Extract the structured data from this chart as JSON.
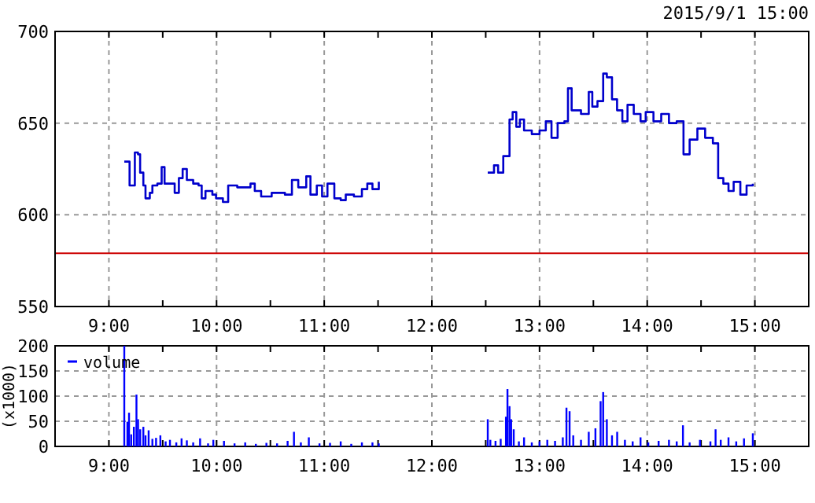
{
  "chart_data": [
    {
      "type": "step",
      "subtitle": "2015/9/1 15:00",
      "xlim": [
        8.5,
        15.5
      ],
      "xticks": [
        {
          "value": 9,
          "label": "9:00"
        },
        {
          "value": 9.5,
          "label": null
        },
        {
          "value": 10,
          "label": "10:00"
        },
        {
          "value": 10.5,
          "label": null
        },
        {
          "value": 11,
          "label": "11:00"
        },
        {
          "value": 11.5,
          "label": null
        },
        {
          "value": 12,
          "label": "12:00"
        },
        {
          "value": 12.5,
          "label": null
        },
        {
          "value": 13,
          "label": "13:00"
        },
        {
          "value": 13.5,
          "label": null
        },
        {
          "value": 14,
          "label": "14:00"
        },
        {
          "value": 14.5,
          "label": null
        },
        {
          "value": 15,
          "label": "15:00"
        }
      ],
      "ylim": [
        550,
        700
      ],
      "yticks": [
        550,
        600,
        650,
        700
      ],
      "grid": true,
      "ref_lines": [
        {
          "axis": "y",
          "value": 579,
          "color": "#cc0000"
        }
      ],
      "series": [
        {
          "color": "#0000cc",
          "x": [
            9.143,
            9.182,
            9.192,
            9.22,
            9.241,
            9.27,
            9.29,
            9.32,
            9.34,
            9.38,
            9.404,
            9.45,
            9.49,
            9.517,
            9.576,
            9.611,
            9.65,
            9.685,
            9.724,
            9.783,
            9.833,
            9.862,
            9.897,
            9.961,
            9.995,
            10.059,
            10.108,
            10.192,
            10.315,
            10.355,
            10.414,
            10.512,
            10.635,
            10.7,
            10.759,
            10.833,
            10.872,
            10.931,
            10.98,
            11.03,
            11.094,
            11.153,
            11.2,
            11.276,
            11.35,
            11.4,
            11.448,
            11.507,
            12,
            12.519,
            12.577,
            12.615,
            12.663,
            12.702,
            12.721,
            12.75,
            12.784,
            12.817,
            12.856,
            12.928,
            13.0,
            13.058,
            13.111,
            13.168,
            13.231,
            13.264,
            13.298,
            13.385,
            13.457,
            13.49,
            13.538,
            13.591,
            13.625,
            13.673,
            13.72,
            13.769,
            13.817,
            13.875,
            13.938,
            13.986,
            14.058,
            14.13,
            14.202,
            14.274,
            14.337,
            14.394,
            14.466,
            14.538,
            14.61,
            14.659,
            14.707,
            14.755,
            14.803,
            14.865,
            14.923,
            14.981
          ],
          "values": [
            629,
            629,
            616,
            616,
            634,
            633,
            623,
            616,
            609,
            612,
            616,
            617,
            626,
            617,
            617,
            612,
            620,
            625,
            619,
            617,
            616,
            609,
            613,
            611,
            609,
            607,
            616,
            615,
            617,
            613,
            610,
            612,
            611,
            619,
            615,
            621,
            611,
            616,
            610,
            617,
            609,
            608,
            611,
            610,
            614,
            617,
            614,
            618,
            null,
            623,
            627,
            623,
            632,
            632,
            652,
            656,
            648,
            652,
            646,
            644,
            646,
            651,
            642,
            650,
            651,
            669,
            657,
            655,
            667,
            659,
            662,
            677,
            675,
            663,
            657,
            651,
            660,
            655,
            651,
            656,
            651,
            655,
            650,
            651,
            633,
            641,
            647,
            642,
            639,
            620,
            617,
            613,
            618,
            611,
            616,
            617
          ]
        }
      ]
    },
    {
      "type": "bar",
      "ylabel": "(x1000)",
      "legend": "top left",
      "xlim": [
        8.5,
        15.5
      ],
      "xticks": [
        {
          "value": 9,
          "label": "9:00"
        },
        {
          "value": 9.5,
          "label": null
        },
        {
          "value": 10,
          "label": "10:00"
        },
        {
          "value": 10.5,
          "label": null
        },
        {
          "value": 11,
          "label": "11:00"
        },
        {
          "value": 11.5,
          "label": null
        },
        {
          "value": 12,
          "label": "12:00"
        },
        {
          "value": 12.5,
          "label": null
        },
        {
          "value": 13,
          "label": "13:00"
        },
        {
          "value": 13.5,
          "label": null
        },
        {
          "value": 14,
          "label": "14:00"
        },
        {
          "value": 14.5,
          "label": null
        },
        {
          "value": 15,
          "label": "15:00"
        }
      ],
      "ylim": [
        0,
        200
      ],
      "yticks": [
        0,
        50,
        100,
        150,
        200
      ],
      "grid": true,
      "series": [
        {
          "name": "volume",
          "color": "#0000ff",
          "x": [
            9.143,
            9.172,
            9.187,
            9.207,
            9.232,
            9.256,
            9.271,
            9.291,
            9.32,
            9.34,
            9.369,
            9.404,
            9.438,
            9.478,
            9.527,
            9.567,
            9.626,
            9.675,
            9.724,
            9.783,
            9.847,
            9.921,
            9.97,
            10.069,
            10.167,
            10.266,
            10.365,
            10.463,
            10.562,
            10.66,
            10.719,
            10.783,
            10.857,
            10.956,
            11.054,
            11.153,
            11.251,
            11.35,
            11.448,
            11.507,
            12.519,
            12.543,
            12.591,
            12.639,
            12.688,
            12.702,
            12.721,
            12.736,
            12.76,
            12.808,
            12.856,
            12.928,
            13.0,
            13.072,
            13.144,
            13.216,
            13.25,
            13.279,
            13.313,
            13.385,
            13.457,
            13.519,
            13.567,
            13.591,
            13.625,
            13.673,
            13.721,
            13.793,
            13.865,
            13.938,
            14.01,
            14.106,
            14.202,
            14.274,
            14.332,
            14.394,
            14.49,
            14.587,
            14.635,
            14.683,
            14.755,
            14.827,
            14.899,
            14.981
          ],
          "values": [
            200,
            49,
            67,
            24,
            39,
            103,
            54,
            34,
            39,
            22,
            32,
            15,
            17,
            22,
            10,
            13,
            8,
            16,
            12,
            8,
            16,
            6,
            13,
            11,
            6,
            8,
            5,
            7,
            6,
            11,
            29,
            8,
            18,
            6,
            7,
            10,
            5,
            8,
            8,
            6,
            54,
            13,
            11,
            15,
            59,
            114,
            80,
            54,
            34,
            10,
            18,
            8,
            10,
            13,
            11,
            18,
            77,
            70,
            22,
            13,
            29,
            36,
            90,
            108,
            54,
            22,
            29,
            13,
            10,
            18,
            8,
            11,
            13,
            10,
            42,
            8,
            13,
            10,
            34,
            13,
            18,
            10,
            16,
            26
          ]
        }
      ]
    }
  ]
}
